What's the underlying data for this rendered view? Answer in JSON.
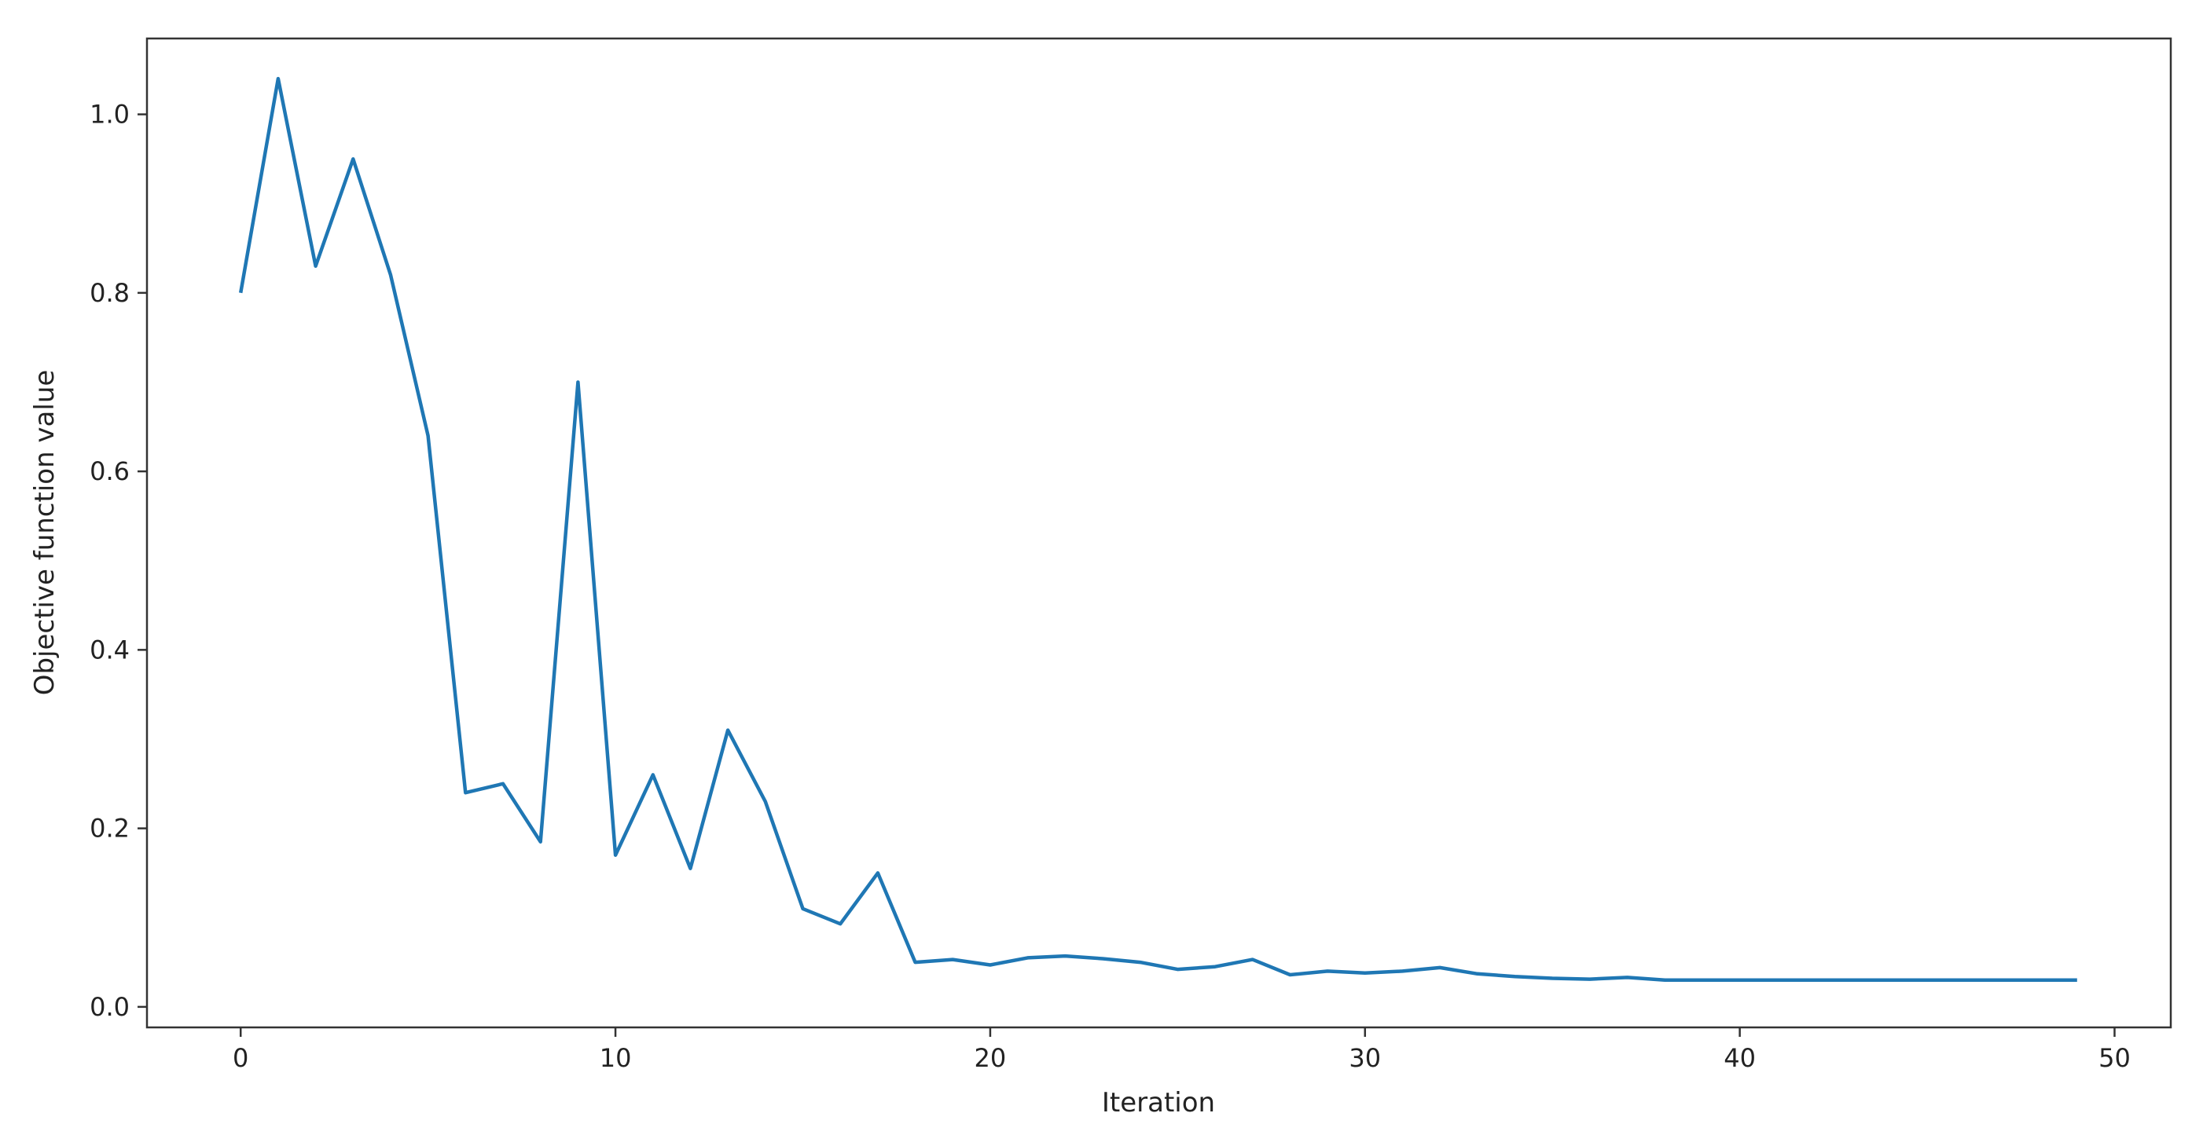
{
  "chart_data": {
    "type": "line",
    "title": "",
    "xlabel": "Iteration",
    "ylabel": "Objective function value",
    "xlim": [
      -2.5,
      51.5
    ],
    "ylim": [
      -0.023,
      1.085
    ],
    "xticks": [
      0,
      10,
      20,
      30,
      40,
      50
    ],
    "xtick_labels": [
      "0",
      "10",
      "20",
      "30",
      "40",
      "50"
    ],
    "yticks": [
      0.0,
      0.2,
      0.4,
      0.6,
      0.8,
      1.0
    ],
    "ytick_labels": [
      "0.0",
      "0.2",
      "0.4",
      "0.6",
      "0.8",
      "1.0"
    ],
    "grid": false,
    "series": [
      {
        "color": "#1f77b4",
        "x": [
          0,
          1,
          2,
          3,
          4,
          5,
          6,
          7,
          8,
          9,
          10,
          11,
          12,
          13,
          14,
          15,
          16,
          17,
          18,
          19,
          20,
          21,
          22,
          23,
          24,
          25,
          26,
          27,
          28,
          29,
          30,
          31,
          32,
          33,
          34,
          35,
          36,
          37,
          38,
          39,
          40,
          41,
          42,
          43,
          44,
          45,
          46,
          47,
          48,
          49
        ],
        "y": [
          0.8,
          1.04,
          0.83,
          0.95,
          0.82,
          0.64,
          0.24,
          0.25,
          0.185,
          0.7,
          0.17,
          0.26,
          0.155,
          0.31,
          0.23,
          0.11,
          0.093,
          0.15,
          0.05,
          0.053,
          0.047,
          0.055,
          0.057,
          0.054,
          0.05,
          0.042,
          0.045,
          0.053,
          0.036,
          0.04,
          0.038,
          0.04,
          0.044,
          0.037,
          0.034,
          0.032,
          0.031,
          0.033,
          0.03,
          0.03,
          0.03,
          0.03,
          0.03,
          0.03,
          0.03,
          0.03,
          0.03,
          0.03,
          0.03,
          0.03
        ]
      }
    ]
  }
}
